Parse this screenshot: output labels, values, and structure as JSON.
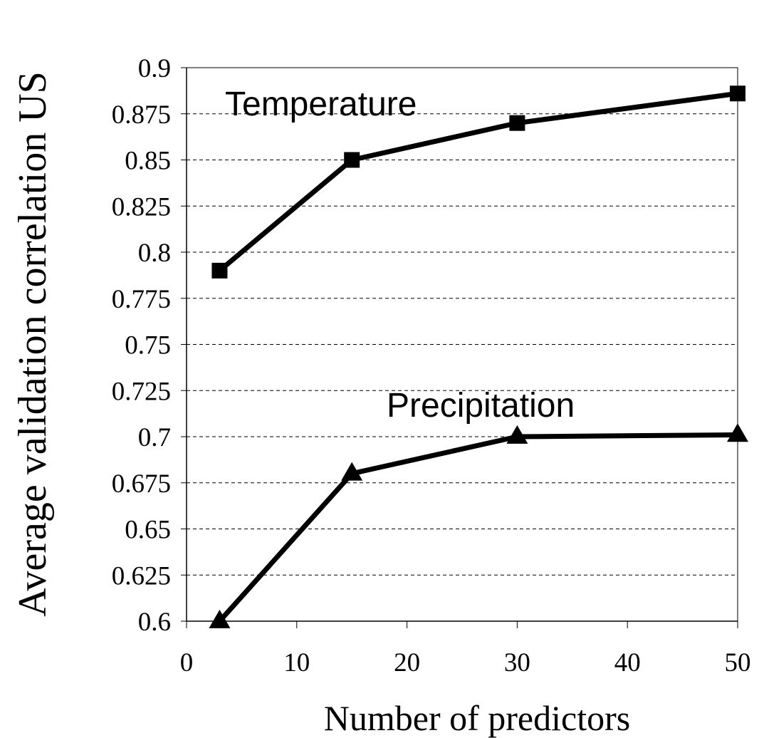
{
  "chart_data": {
    "type": "line",
    "xlabel": "Number of predictors",
    "ylabel": "Average validation correlation US",
    "xlim": [
      0,
      50
    ],
    "ylim": [
      0.6,
      0.9
    ],
    "x_ticks": [
      "0",
      "10",
      "20",
      "30",
      "40",
      "50"
    ],
    "y_ticks": [
      "0.6",
      "0.625",
      "0.65",
      "0.675",
      "0.7",
      "0.725",
      "0.75",
      "0.775",
      "0.8",
      "0.825",
      "0.85",
      "0.875",
      "0.9"
    ],
    "grid": "horizontal dashed",
    "legend": "none",
    "series": [
      {
        "name": "Temperature",
        "marker": "square",
        "color": "#000000",
        "x": [
          3,
          15,
          30,
          50
        ],
        "y": [
          0.79,
          0.85,
          0.87,
          0.886
        ]
      },
      {
        "name": "Precipitation",
        "marker": "triangle",
        "color": "#000000",
        "x": [
          3,
          15,
          30,
          50
        ],
        "y": [
          0.6,
          0.68,
          0.7,
          0.701
        ]
      }
    ]
  }
}
